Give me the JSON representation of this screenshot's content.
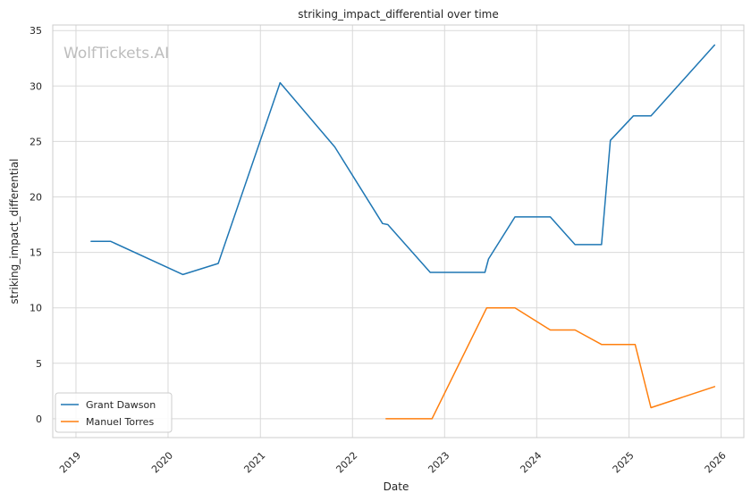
{
  "watermark": "WolfTickets.AI",
  "chart_data": {
    "type": "line",
    "title": "striking_impact_differential over time",
    "xlabel": "Date",
    "ylabel": "striking_impact_differential",
    "x_ticks": [
      "2019",
      "2020",
      "2021",
      "2022",
      "2023",
      "2024",
      "2025",
      "2026"
    ],
    "y_ticks": [
      0,
      5,
      10,
      15,
      20,
      25,
      30,
      35
    ],
    "xlim": [
      "2018-10-01",
      "2026-04-01"
    ],
    "ylim": [
      -1.7,
      35.5
    ],
    "grid": true,
    "legend_position": "lower-left",
    "series": [
      {
        "name": "Grant Dawson",
        "color": "#1f77b4",
        "points": [
          [
            "2019-03-02",
            16.0
          ],
          [
            "2019-05-18",
            16.0
          ],
          [
            "2020-02-29",
            13.0
          ],
          [
            "2020-07-18",
            14.0
          ],
          [
            "2021-03-20",
            30.3
          ],
          [
            "2021-10-23",
            24.5
          ],
          [
            "2022-04-30",
            17.6
          ],
          [
            "2022-05-21",
            17.5
          ],
          [
            "2022-11-05",
            13.2
          ],
          [
            "2023-06-10",
            13.2
          ],
          [
            "2023-06-24",
            14.4
          ],
          [
            "2023-10-07",
            18.2
          ],
          [
            "2024-02-24",
            18.2
          ],
          [
            "2024-06-01",
            15.7
          ],
          [
            "2024-09-14",
            15.7
          ],
          [
            "2024-10-19",
            25.1
          ],
          [
            "2025-01-18",
            27.3
          ],
          [
            "2025-03-29",
            27.3
          ],
          [
            "2025-12-06",
            33.7
          ]
        ]
      },
      {
        "name": "Manuel Torres",
        "color": "#ff7f0e",
        "points": [
          [
            "2022-05-14",
            0.0
          ],
          [
            "2022-11-12",
            0.0
          ],
          [
            "2023-06-17",
            10.0
          ],
          [
            "2023-10-07",
            10.0
          ],
          [
            "2024-02-24",
            8.0
          ],
          [
            "2024-06-01",
            8.0
          ],
          [
            "2024-09-14",
            6.7
          ],
          [
            "2025-01-25",
            6.7
          ],
          [
            "2025-03-29",
            1.0
          ],
          [
            "2025-12-06",
            2.9
          ]
        ]
      }
    ]
  }
}
